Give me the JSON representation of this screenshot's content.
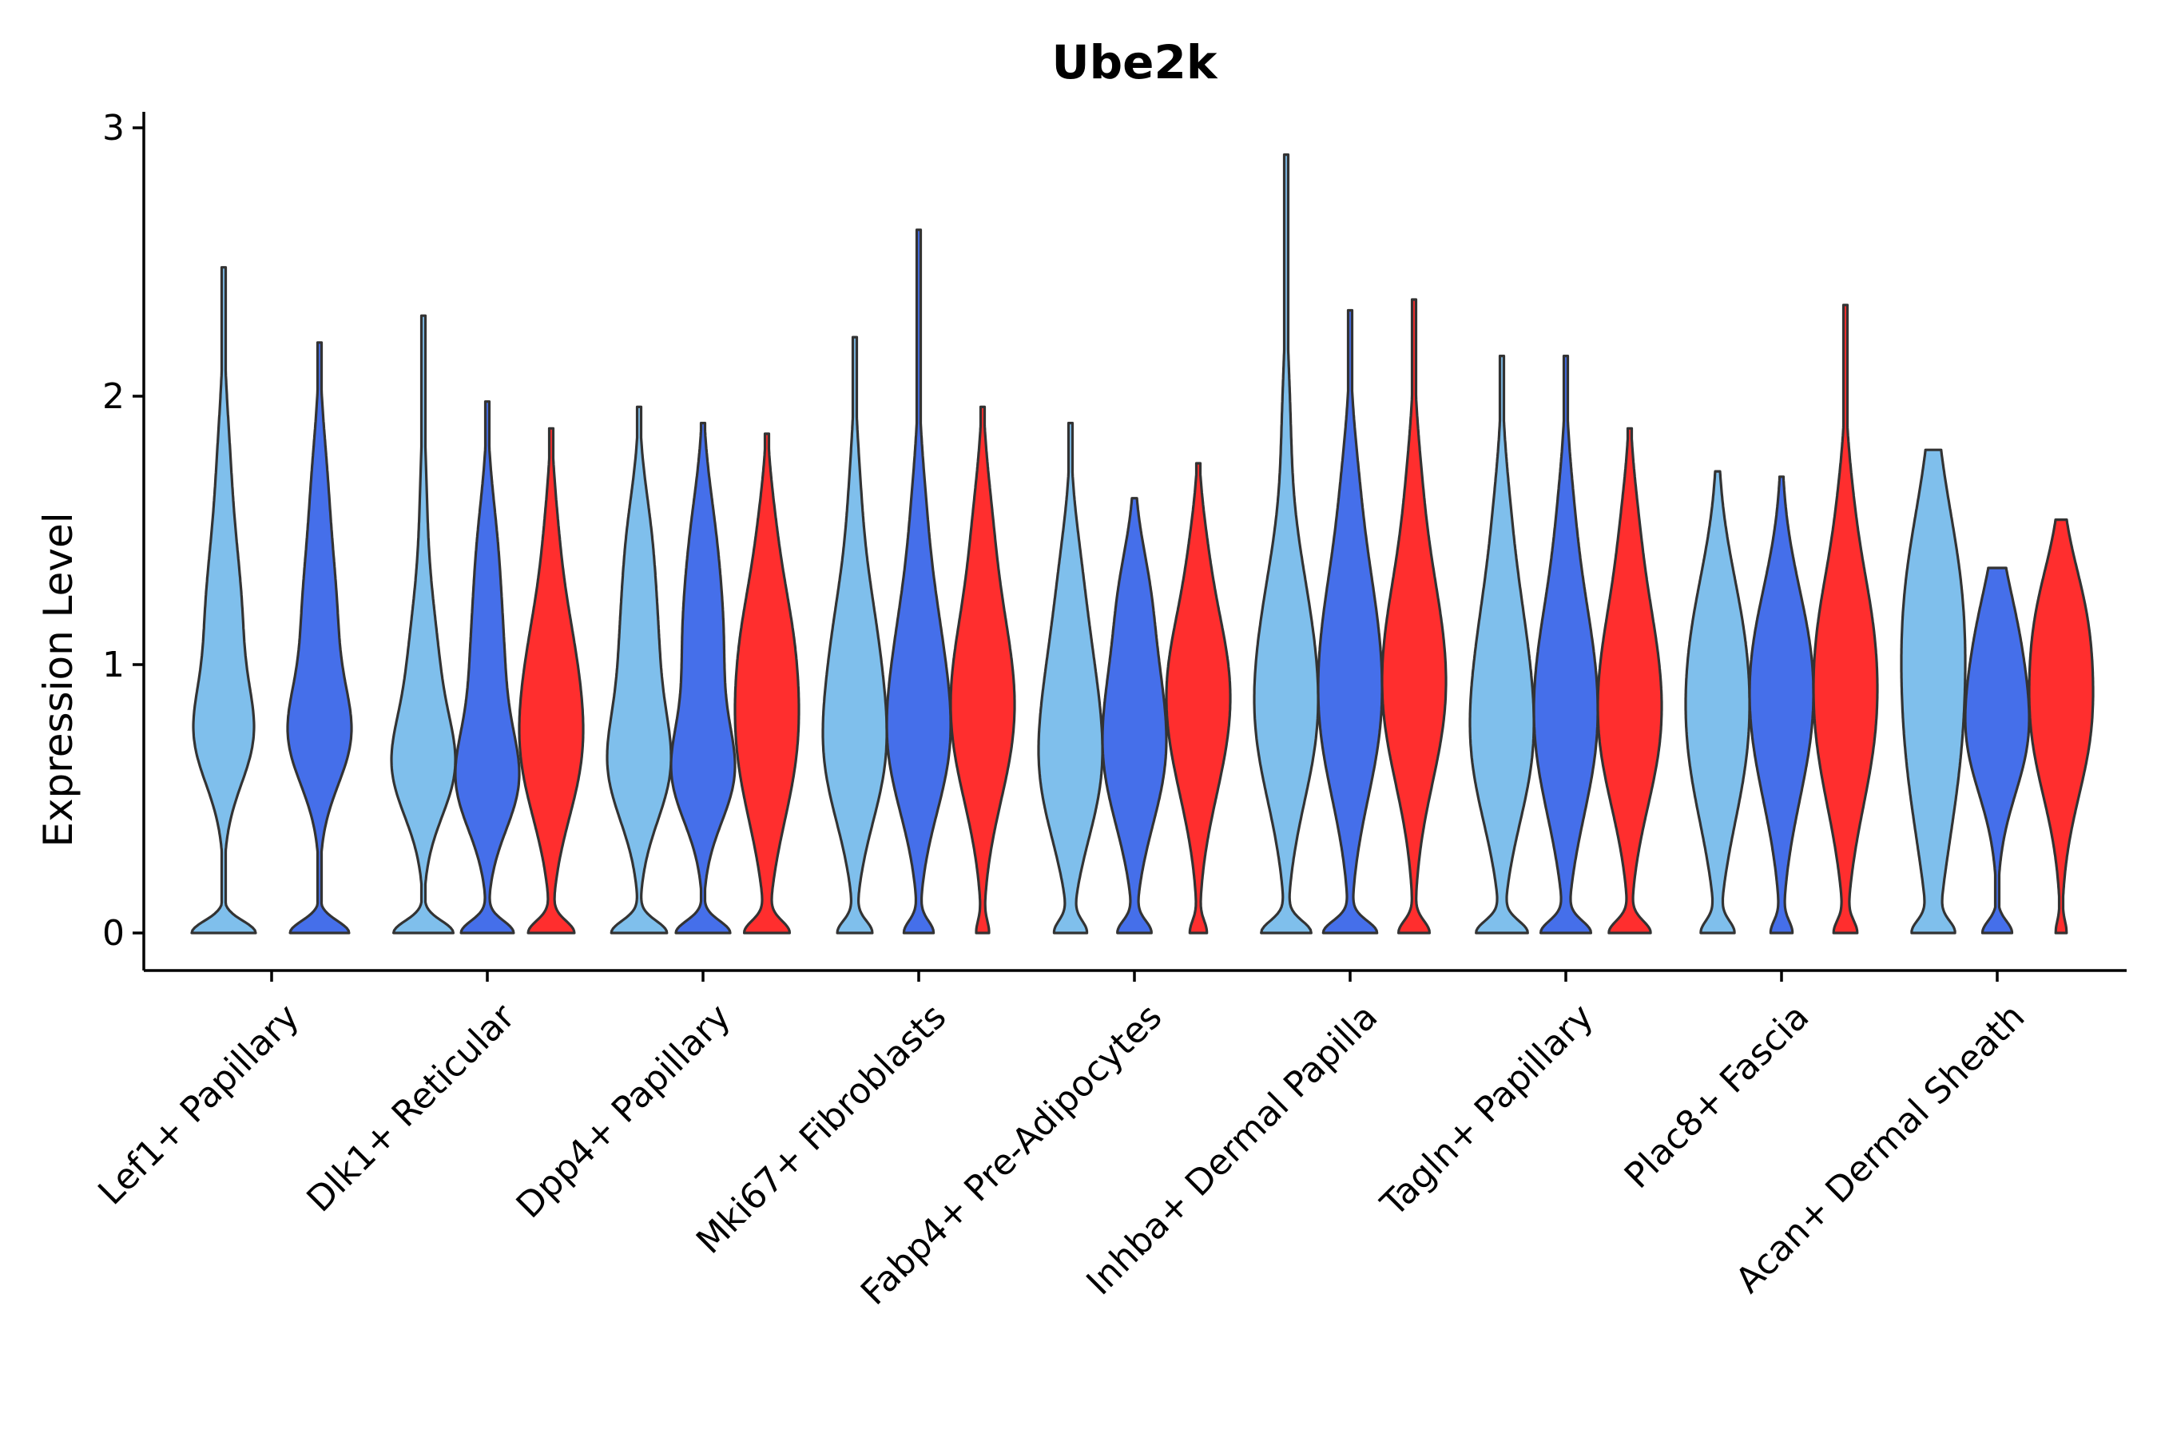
{
  "chart_data": {
    "type": "violin",
    "title": "Ube2k",
    "xlabel": "",
    "ylabel": "Expression Level",
    "ylim": [
      -0.15,
      3.05
    ],
    "yticks": [
      0,
      1,
      2,
      3
    ],
    "colors": {
      "s1": "#7FBFEC",
      "s2": "#456FEA",
      "s3": "#FF2E2E",
      "stroke": "#333333"
    },
    "categories": [
      {
        "label": "Lef1+ Papillary",
        "violins": [
          {
            "series": "s1",
            "max": 2.48,
            "neck": 0.12,
            "w0": 0.8,
            "modes": [
              [
                0.72,
                0.58,
                0.18
              ],
              [
                1.15,
                0.45,
                0.3
              ],
              [
                1.75,
                0.12,
                0.25
              ]
            ]
          },
          {
            "series": "s2",
            "max": 2.2,
            "neck": 0.12,
            "w0": 0.82,
            "modes": [
              [
                0.72,
                0.7,
                0.18
              ],
              [
                1.15,
                0.48,
                0.3
              ],
              [
                1.7,
                0.14,
                0.22
              ]
            ]
          }
        ]
      },
      {
        "label": "Dlk1+ Reticular",
        "violins": [
          {
            "series": "s1",
            "max": 2.3,
            "neck": 0.1,
            "w0": 0.55,
            "modes": [
              [
                0.6,
                0.45,
                0.18
              ],
              [
                0.95,
                0.28,
                0.28
              ],
              [
                1.6,
                0.05,
                0.25
              ]
            ]
          },
          {
            "series": "s2",
            "max": 1.98,
            "neck": 0.11,
            "w0": 0.55,
            "modes": [
              [
                0.55,
                0.52,
                0.18
              ],
              [
                0.95,
                0.35,
                0.3
              ],
              [
                1.45,
                0.14,
                0.22
              ]
            ]
          },
          {
            "series": "s3",
            "max": 1.88,
            "neck": 0.12,
            "w0": 0.52,
            "modes": [
              [
                0.65,
                0.6,
                0.25
              ],
              [
                1.05,
                0.4,
                0.25
              ],
              [
                1.5,
                0.1,
                0.2
              ]
            ]
          }
        ]
      },
      {
        "label": "Dpp4+ Papillary",
        "violins": [
          {
            "series": "s1",
            "max": 1.96,
            "neck": 0.1,
            "w0": 0.6,
            "modes": [
              [
                0.6,
                0.55,
                0.2
              ],
              [
                1.05,
                0.4,
                0.3
              ],
              [
                1.5,
                0.14,
                0.2
              ]
            ]
          },
          {
            "series": "s2",
            "max": 1.9,
            "neck": 0.1,
            "w0": 0.58,
            "modes": [
              [
                0.58,
                0.55,
                0.18
              ],
              [
                1.05,
                0.42,
                0.3
              ],
              [
                1.5,
                0.14,
                0.22
              ]
            ]
          },
          {
            "series": "s3",
            "max": 1.86,
            "neck": 0.14,
            "w0": 0.55,
            "modes": [
              [
                0.7,
                0.72,
                0.3
              ],
              [
                1.15,
                0.42,
                0.25
              ],
              [
                1.55,
                0.1,
                0.18
              ]
            ]
          }
        ]
      },
      {
        "label": "Mki67+ Fibroblasts",
        "violins": [
          {
            "series": "s1",
            "max": 2.22,
            "neck": 0.18,
            "w0": 0.45,
            "modes": [
              [
                0.62,
                0.62,
                0.25
              ],
              [
                1.05,
                0.55,
                0.3
              ],
              [
                1.65,
                0.1,
                0.22
              ]
            ]
          },
          {
            "series": "s2",
            "max": 2.62,
            "neck": 0.16,
            "w0": 0.4,
            "modes": [
              [
                0.65,
                0.62,
                0.25
              ],
              [
                1.05,
                0.55,
                0.3
              ],
              [
                1.6,
                0.12,
                0.22
              ]
            ]
          },
          {
            "series": "s3",
            "max": 1.96,
            "neck": 0.14,
            "w0": 0.18,
            "modes": [
              [
                0.7,
                0.65,
                0.28
              ],
              [
                1.05,
                0.6,
                0.3
              ],
              [
                1.55,
                0.18,
                0.22
              ]
            ]
          }
        ]
      },
      {
        "label": "Fabp4+ Pre-Adipocytes",
        "violins": [
          {
            "series": "s1",
            "max": 1.9,
            "neck": 0.14,
            "w0": 0.35,
            "modes": [
              [
                0.55,
                0.52,
                0.25
              ],
              [
                0.95,
                0.48,
                0.3
              ],
              [
                1.4,
                0.1,
                0.2
              ]
            ]
          },
          {
            "series": "s2",
            "max": 1.62,
            "neck": 0.14,
            "w0": 0.4,
            "modes": [
              [
                0.6,
                0.55,
                0.25
              ],
              [
                0.95,
                0.45,
                0.28
              ],
              [
                1.3,
                0.18,
                0.18
              ]
            ]
          },
          {
            "series": "s3",
            "max": 1.75,
            "neck": 0.14,
            "w0": 0.22,
            "modes": [
              [
                0.72,
                0.62,
                0.28
              ],
              [
                1.05,
                0.48,
                0.25
              ],
              [
                1.45,
                0.12,
                0.18
              ]
            ]
          }
        ]
      },
      {
        "label": "Inhba+ Dermal Papilla",
        "violins": [
          {
            "series": "s1",
            "max": 2.9,
            "neck": 0.18,
            "w0": 0.68,
            "modes": [
              [
                0.75,
                0.72,
                0.3
              ],
              [
                1.2,
                0.45,
                0.3
              ],
              [
                1.9,
                0.1,
                0.25
              ]
            ]
          },
          {
            "series": "s2",
            "max": 2.32,
            "neck": 0.18,
            "w0": 0.68,
            "modes": [
              [
                0.75,
                0.62,
                0.3
              ],
              [
                1.2,
                0.48,
                0.3
              ],
              [
                1.7,
                0.12,
                0.22
              ]
            ]
          },
          {
            "series": "s3",
            "max": 2.36,
            "neck": 0.18,
            "w0": 0.46,
            "modes": [
              [
                0.8,
                0.72,
                0.3
              ],
              [
                1.2,
                0.5,
                0.3
              ],
              [
                1.7,
                0.12,
                0.22
              ]
            ]
          }
        ]
      },
      {
        "label": "Tagln+ Papillary",
        "violins": [
          {
            "series": "s1",
            "max": 2.15,
            "neck": 0.14,
            "w0": 0.6,
            "modes": [
              [
                0.65,
                0.6,
                0.28
              ],
              [
                1.1,
                0.45,
                0.3
              ],
              [
                1.6,
                0.1,
                0.22
              ]
            ]
          },
          {
            "series": "s2",
            "max": 2.15,
            "neck": 0.14,
            "w0": 0.68,
            "modes": [
              [
                0.68,
                0.68,
                0.3
              ],
              [
                1.1,
                0.5,
                0.3
              ],
              [
                1.6,
                0.12,
                0.22
              ]
            ]
          },
          {
            "series": "s3",
            "max": 1.88,
            "neck": 0.14,
            "w0": 0.55,
            "modes": [
              [
                0.7,
                0.65,
                0.28
              ],
              [
                1.1,
                0.48,
                0.28
              ],
              [
                1.55,
                0.12,
                0.2
              ]
            ]
          }
        ]
      },
      {
        "label": "Plac8+ Fascia",
        "violins": [
          {
            "series": "s1",
            "max": 1.72,
            "neck": 0.18,
            "w0": 0.4,
            "modes": [
              [
                0.65,
                0.6,
                0.3
              ],
              [
                1.1,
                0.55,
                0.3
              ]
            ]
          },
          {
            "series": "s2",
            "max": 1.7,
            "neck": 0.2,
            "w0": 0.3,
            "modes": [
              [
                0.72,
                0.68,
                0.3
              ],
              [
                1.1,
                0.55,
                0.28
              ]
            ]
          },
          {
            "series": "s3",
            "max": 2.34,
            "neck": 0.18,
            "w0": 0.3,
            "modes": [
              [
                0.75,
                0.75,
                0.32
              ],
              [
                1.2,
                0.48,
                0.28
              ],
              [
                1.65,
                0.08,
                0.18
              ]
            ]
          }
        ]
      },
      {
        "label": "Acan+ Dermal Sheath",
        "violins": [
          {
            "series": "s1",
            "max": 1.8,
            "neck": 0.2,
            "w0": 0.45,
            "modes": [
              [
                0.7,
                0.65,
                0.4
              ],
              [
                1.3,
                0.55,
                0.35
              ]
            ]
          },
          {
            "series": "s2",
            "max": 1.36,
            "neck": 0.16,
            "w0": 0.3,
            "modes": [
              [
                0.72,
                0.55,
                0.22
              ],
              [
                1.1,
                0.35,
                0.22
              ]
            ]
          },
          {
            "series": "s3",
            "max": 1.54,
            "neck": 0.18,
            "w0": 0.12,
            "modes": [
              [
                0.78,
                0.7,
                0.28
              ],
              [
                1.2,
                0.4,
                0.22
              ]
            ]
          }
        ]
      }
    ]
  }
}
